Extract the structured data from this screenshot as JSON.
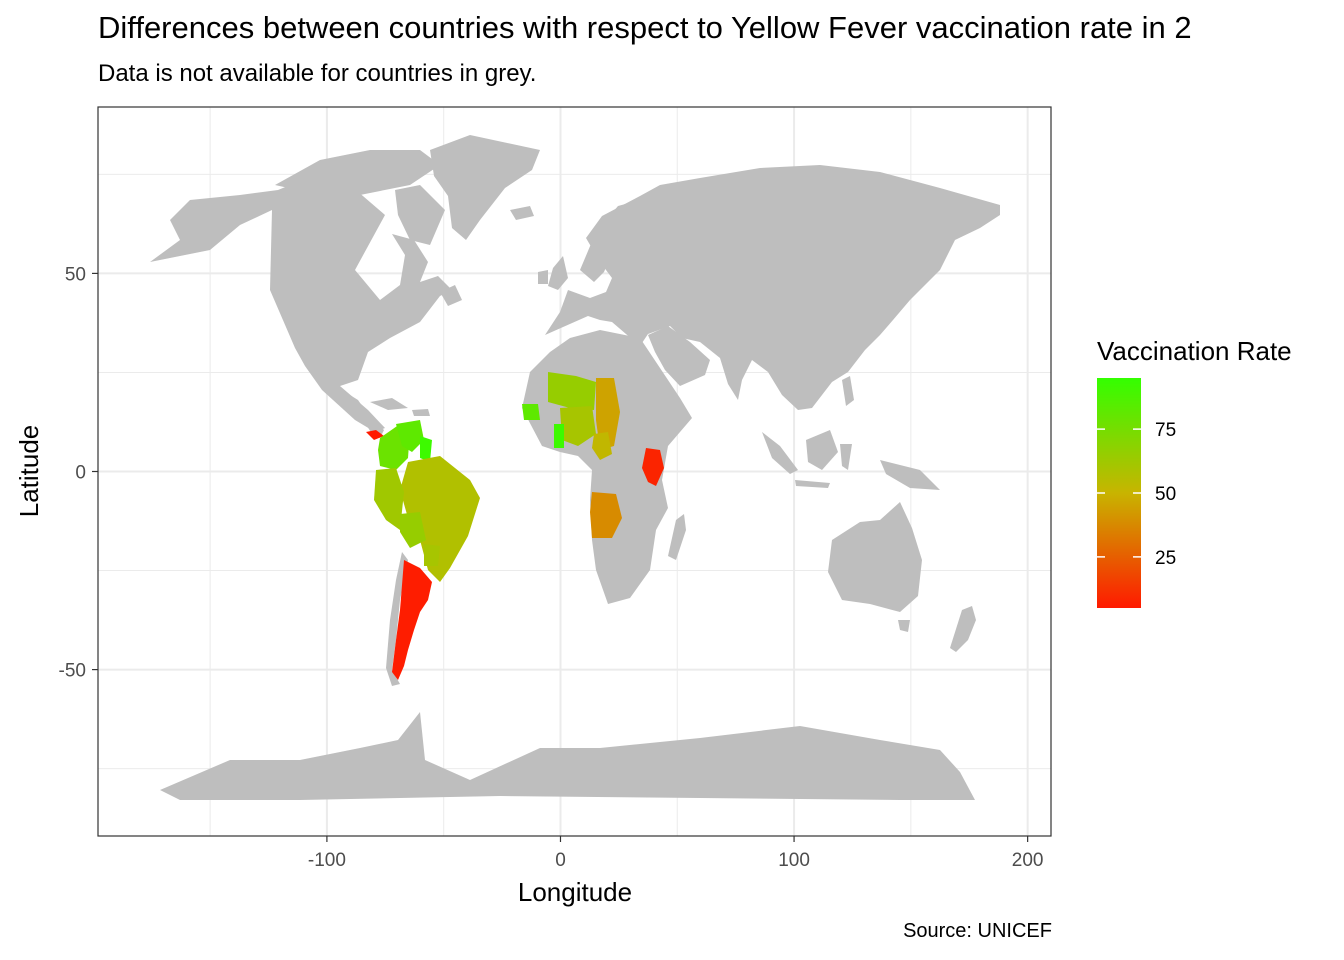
{
  "title": "Differences between countries with respect to Yellow Fever vaccination rate in 2",
  "subtitle": "Data is not available for countries in grey.",
  "caption": "Source: UNICEF",
  "colors": {
    "land_no_data": "#bebebe",
    "low": "#ff1a00",
    "mid": "#c8b400",
    "high": "#33ff00",
    "grid": "#ebebeb",
    "panel_border": "#333333"
  },
  "chart_data": {
    "type": "map",
    "xlabel": "Longitude",
    "ylabel": "Latitude",
    "xlim": [
      -198,
      210
    ],
    "ylim": [
      -92,
      92
    ],
    "x_ticks": [
      -100,
      0,
      100,
      200
    ],
    "x_tick_labels": [
      "-100",
      "0",
      "100",
      "200"
    ],
    "y_ticks": [
      50,
      0,
      -50
    ],
    "y_tick_labels": [
      "50",
      "0",
      "-50"
    ],
    "grid": true,
    "legend": {
      "title": "Vaccination Rate",
      "position": "right",
      "range": [
        5,
        95
      ],
      "breaks": [
        75,
        50,
        25
      ],
      "break_labels": [
        "75",
        "50",
        "25"
      ]
    },
    "regions": [
      {
        "name": "Argentina",
        "value": 6
      },
      {
        "name": "Kenya",
        "value": 8
      },
      {
        "name": "Panama",
        "value": 5
      },
      {
        "name": "Angola",
        "value": 38
      },
      {
        "name": "Colombia",
        "value": 78
      },
      {
        "name": "Venezuela",
        "value": 82
      },
      {
        "name": "Guyana",
        "value": 92
      },
      {
        "name": "Brazil",
        "value": 57
      },
      {
        "name": "Peru",
        "value": 62
      },
      {
        "name": "Bolivia",
        "value": 65
      },
      {
        "name": "Paraguay",
        "value": 60
      },
      {
        "name": "Chad",
        "value": 45
      },
      {
        "name": "Niger",
        "value": 65
      },
      {
        "name": "Nigeria",
        "value": 60
      },
      {
        "name": "Ghana",
        "value": 92
      },
      {
        "name": "Cameroon",
        "value": 52
      },
      {
        "name": "Senegal",
        "value": 82
      }
    ]
  }
}
